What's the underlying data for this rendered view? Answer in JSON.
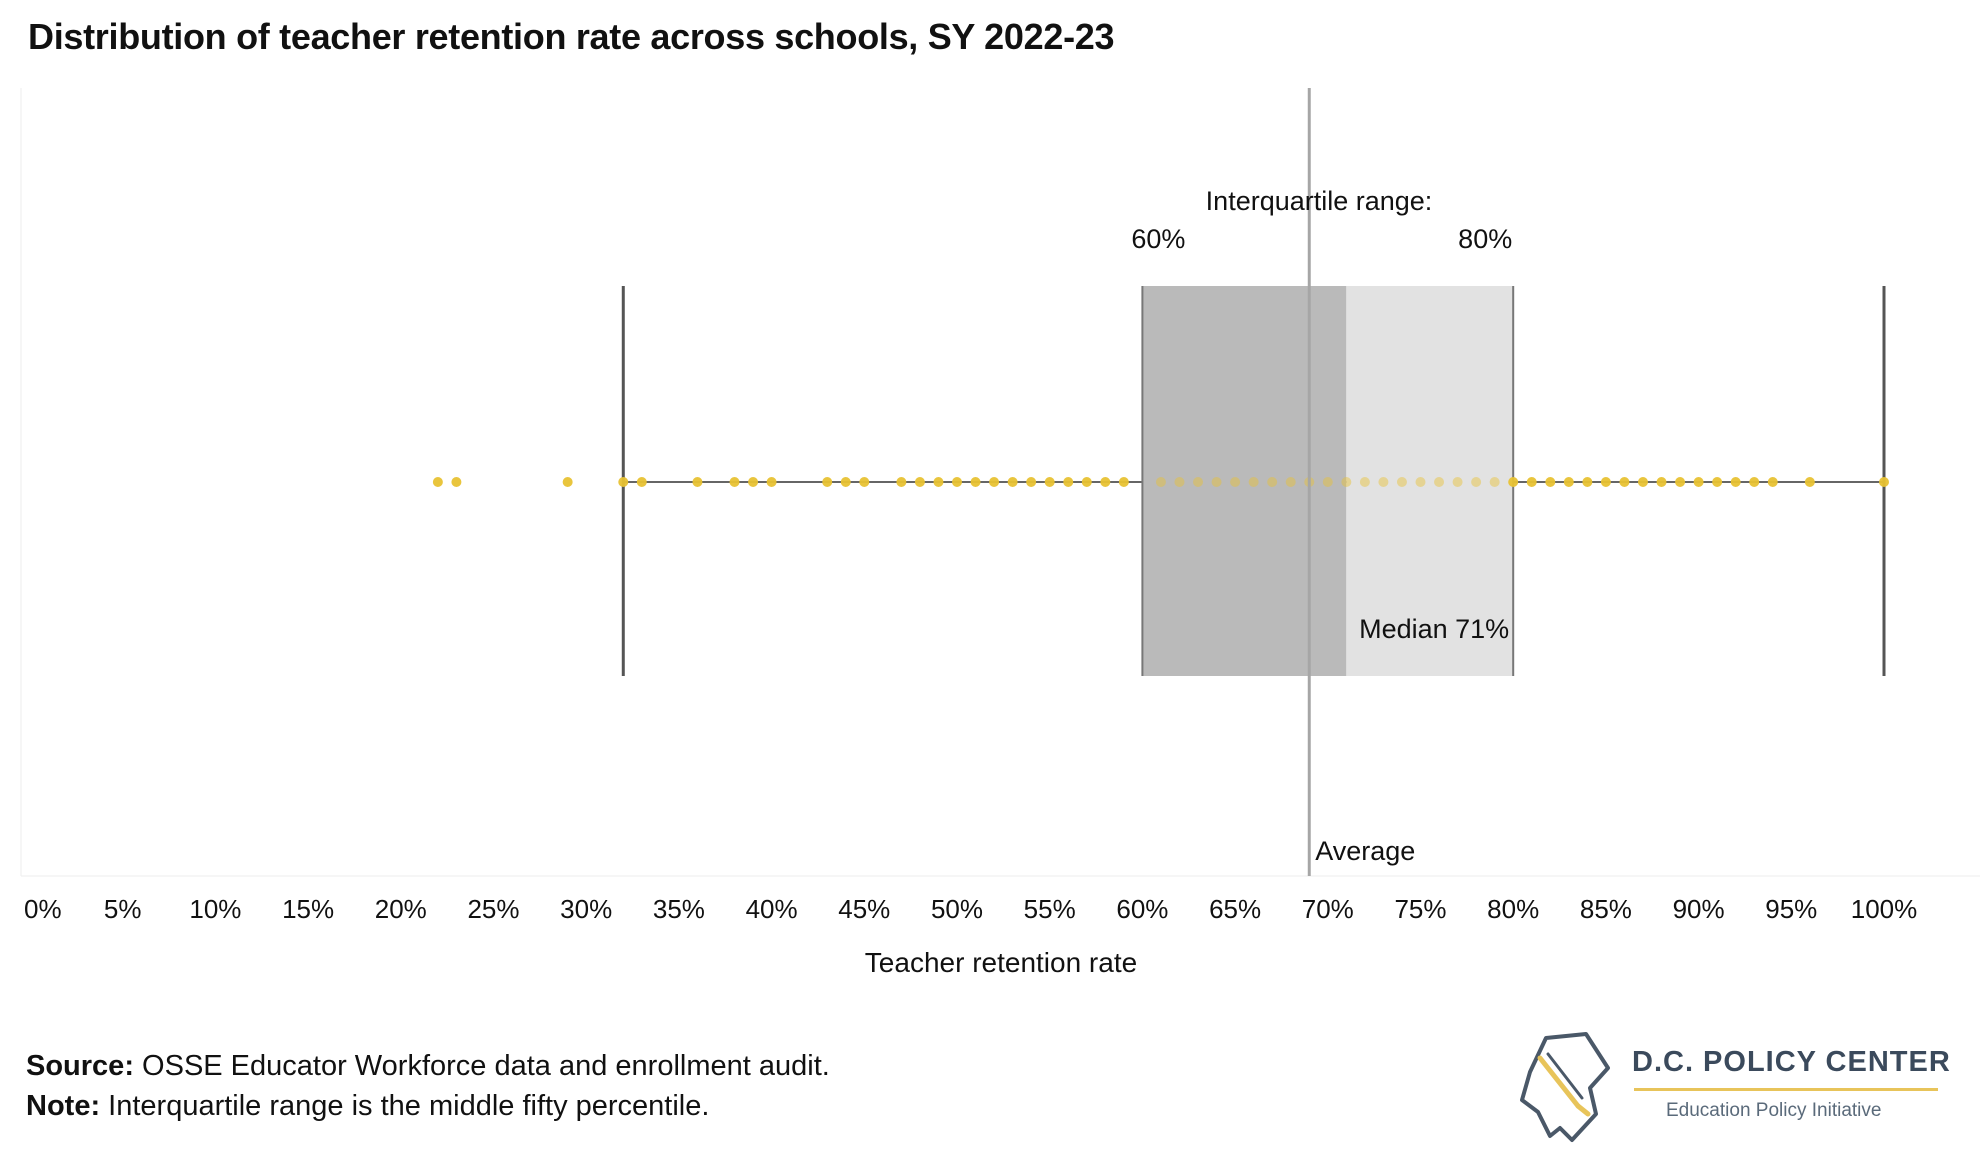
{
  "chart_data": {
    "type": "box plot with dot strip",
    "title": "Distribution of teacher retention rate across schools, SY 2022-23",
    "xlabel": "Teacher retention rate",
    "ylabel": "",
    "xlim": [
      0,
      100
    ],
    "x_ticks": [
      "0%",
      "5%",
      "10%",
      "15%",
      "20%",
      "25%",
      "30%",
      "35%",
      "40%",
      "45%",
      "50%",
      "55%",
      "60%",
      "65%",
      "70%",
      "75%",
      "80%",
      "85%",
      "90%",
      "95%",
      "100%"
    ],
    "x_tick_values": [
      0,
      5,
      10,
      15,
      20,
      25,
      30,
      35,
      40,
      45,
      50,
      55,
      60,
      65,
      70,
      75,
      80,
      85,
      90,
      95,
      100
    ],
    "grid": false,
    "whisker_low": 32,
    "q1": 60,
    "median": 71,
    "q3": 80,
    "whisker_high": 100,
    "average": 69,
    "points": [
      22,
      23,
      29,
      32,
      33,
      36,
      38,
      39,
      40,
      43,
      44,
      45,
      47,
      48,
      49,
      50,
      51,
      52,
      53,
      54,
      55,
      56,
      57,
      58,
      59,
      61,
      62,
      63,
      64,
      65,
      66,
      67,
      68,
      69,
      70,
      71,
      72,
      73,
      74,
      75,
      76,
      77,
      78,
      79,
      80,
      81,
      82,
      83,
      84,
      85,
      86,
      87,
      88,
      89,
      90,
      91,
      92,
      93,
      94,
      96,
      100
    ],
    "annotations": {
      "iqr_label": "Interquartile range:",
      "q1_label": "60%",
      "q3_label": "80%",
      "median_label": "Median 71%",
      "average_label": "Average"
    },
    "colors": {
      "points": "#e8c233",
      "box_lower": "#bababa",
      "box_upper": "#e2e2e2",
      "whisker": "#555555",
      "average_line": "#a6a6a6"
    }
  },
  "footer": {
    "source_label": "Source:",
    "source_text": " OSSE Educator Workforce data and enrollment audit.",
    "note_label": "Note:",
    "note_text": " Interquartile range is the middle fifty percentile."
  },
  "logo": {
    "name": "D.C. POLICY CENTER",
    "tagline": "Education Policy Initiative"
  }
}
